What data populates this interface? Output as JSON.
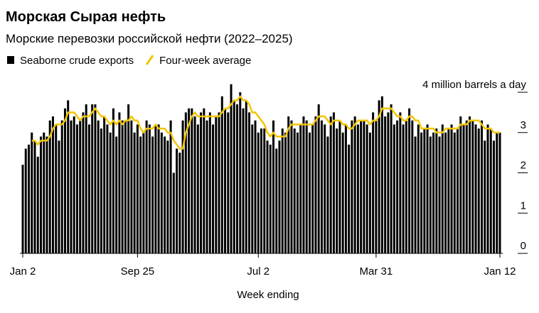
{
  "chart_data": {
    "type": "bar",
    "title": "Морская Сырая нефть",
    "subtitle": "Морские перевозки российской нефти (2022–2025)",
    "xlabel": "Week ending",
    "categories": [
      "Jan 2",
      null,
      null,
      null,
      null,
      null,
      null,
      null,
      null,
      null,
      null,
      null,
      null,
      null,
      null,
      null,
      null,
      null,
      null,
      null,
      null,
      null,
      null,
      null,
      null,
      null,
      null,
      null,
      null,
      null,
      null,
      null,
      null,
      null,
      null,
      null,
      null,
      null,
      "Sep 25",
      null,
      null,
      null,
      null,
      null,
      null,
      null,
      null,
      null,
      null,
      null,
      null,
      null,
      null,
      null,
      null,
      null,
      null,
      null,
      null,
      null,
      null,
      null,
      null,
      null,
      null,
      null,
      null,
      null,
      null,
      null,
      null,
      null,
      null,
      null,
      null,
      null,
      null,
      null,
      "Jul 2",
      null,
      null,
      null,
      null,
      null,
      null,
      null,
      null,
      null,
      null,
      null,
      null,
      null,
      null,
      null,
      null,
      null,
      null,
      null,
      null,
      null,
      null,
      null,
      null,
      null,
      null,
      null,
      null,
      null,
      null,
      null,
      null,
      null,
      null,
      null,
      null,
      null,
      null,
      "Mar 31",
      null,
      null,
      null,
      null,
      null,
      null,
      null,
      null,
      null,
      null,
      null,
      null,
      null,
      null,
      null,
      null,
      null,
      null,
      null,
      null,
      null,
      null,
      null,
      null,
      null,
      null,
      null,
      null,
      null,
      null,
      null,
      null,
      null,
      null,
      null,
      null,
      null,
      null,
      null,
      null,
      "Jan 12"
    ],
    "series": [
      {
        "name": "Seaborne crude exports",
        "type": "bar",
        "color": "#000000",
        "values": [
          2.2,
          2.6,
          2.7,
          3.0,
          2.8,
          2.4,
          2.9,
          3.0,
          2.9,
          3.3,
          3.4,
          3.2,
          2.8,
          3.3,
          3.6,
          3.8,
          3.3,
          3.4,
          3.2,
          3.3,
          3.5,
          3.7,
          3.2,
          3.7,
          3.7,
          3.3,
          3.1,
          3.4,
          3.2,
          3.0,
          3.6,
          2.9,
          3.5,
          3.3,
          3.3,
          3.7,
          3.3,
          3.0,
          3.2,
          2.9,
          3.0,
          3.3,
          3.2,
          2.9,
          3.2,
          3.2,
          3.0,
          2.9,
          2.8,
          3.3,
          2.0,
          2.6,
          2.5,
          3.3,
          3.5,
          3.6,
          3.6,
          3.4,
          3.2,
          3.5,
          3.6,
          3.3,
          3.5,
          3.2,
          3.4,
          3.5,
          3.9,
          3.6,
          3.5,
          4.2,
          3.8,
          3.7,
          4.0,
          3.6,
          3.8,
          3.5,
          3.2,
          3.3,
          3.0,
          3.1,
          3.1,
          2.8,
          2.7,
          3.3,
          2.6,
          2.8,
          3.1,
          3.0,
          3.4,
          3.3,
          3.1,
          3.0,
          3.2,
          3.4,
          3.3,
          3.0,
          3.2,
          3.4,
          3.7,
          3.3,
          3.2,
          2.9,
          3.4,
          3.5,
          3.1,
          3.3,
          3.0,
          3.2,
          2.7,
          3.3,
          3.4,
          3.2,
          3.3,
          3.3,
          3.2,
          3.0,
          3.5,
          3.3,
          3.8,
          3.9,
          3.4,
          3.5,
          3.7,
          3.2,
          3.3,
          3.5,
          3.2,
          3.3,
          3.6,
          3.3,
          2.9,
          3.2,
          3.0,
          3.1,
          3.2,
          2.9,
          3.0,
          3.1,
          2.9,
          3.2,
          3.0,
          3.1,
          3.2,
          3.0,
          3.1,
          3.4,
          3.2,
          3.3,
          3.4,
          3.3,
          3.2,
          3.1,
          3.3,
          2.8,
          3.2,
          3.1,
          2.8,
          3.0,
          3.0
        ]
      },
      {
        "name": "Four-week average",
        "type": "line",
        "color": "#f2c500",
        "values": [
          null,
          null,
          null,
          2.8,
          2.8,
          2.7,
          2.8,
          2.8,
          2.8,
          2.9,
          3.1,
          3.2,
          3.2,
          3.2,
          3.3,
          3.5,
          3.5,
          3.5,
          3.4,
          3.3,
          3.4,
          3.4,
          3.4,
          3.5,
          3.6,
          3.5,
          3.4,
          3.4,
          3.3,
          3.2,
          3.3,
          3.2,
          3.3,
          3.2,
          3.3,
          3.3,
          3.4,
          3.3,
          3.3,
          3.1,
          3.0,
          3.1,
          3.1,
          3.1,
          3.2,
          3.1,
          3.1,
          3.1,
          3.0,
          3.0,
          2.8,
          2.7,
          2.6,
          2.6,
          3.0,
          3.2,
          3.4,
          3.5,
          3.4,
          3.4,
          3.4,
          3.4,
          3.4,
          3.4,
          3.4,
          3.4,
          3.5,
          3.6,
          3.6,
          3.7,
          3.8,
          3.8,
          3.9,
          3.8,
          3.8,
          3.7,
          3.5,
          3.5,
          3.4,
          3.3,
          3.2,
          3.0,
          2.9,
          3.0,
          2.9,
          2.9,
          2.9,
          2.9,
          3.1,
          3.2,
          3.2,
          3.2,
          3.2,
          3.2,
          3.2,
          3.2,
          3.2,
          3.3,
          3.4,
          3.4,
          3.4,
          3.3,
          3.2,
          3.3,
          3.3,
          3.3,
          3.2,
          3.2,
          3.1,
          3.1,
          3.2,
          3.3,
          3.3,
          3.3,
          3.3,
          3.2,
          3.3,
          3.3,
          3.4,
          3.6,
          3.6,
          3.6,
          3.6,
          3.5,
          3.4,
          3.4,
          3.3,
          3.3,
          3.4,
          3.4,
          3.3,
          3.3,
          3.1,
          3.1,
          3.1,
          3.1,
          3.1,
          3.0,
          3.0,
          3.0,
          3.1,
          3.1,
          3.1,
          3.1,
          3.1,
          3.2,
          3.2,
          3.2,
          3.3,
          3.3,
          3.3,
          3.3,
          3.2,
          3.1,
          3.1,
          3.1,
          3.0,
          3.0,
          3.0
        ]
      }
    ],
    "ylim": [
      0,
      4.2
    ],
    "yticks": [
      0,
      1,
      2,
      3,
      {
        "value": 4,
        "label": "4 million barrels a day"
      }
    ],
    "grid": false
  }
}
